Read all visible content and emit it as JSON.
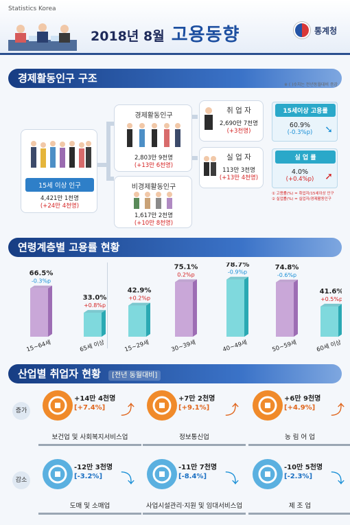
{
  "header": {
    "agency_small": "Statistics Korea",
    "date": "2018년 8월",
    "title": "고용동향",
    "logo_text": "통계청"
  },
  "section1": {
    "title": "경제활동인구 구조",
    "note": "※ ( )수치는 전년동월대비 증감",
    "pop15": {
      "label": "15세 이상 인구",
      "value": "4,421만 1천명",
      "change": "(+24만 4천명)"
    },
    "active": {
      "label": "경제활동인구",
      "value": "2,803만 9천명",
      "change": "(+13만 6천명)"
    },
    "inactive": {
      "label": "비경제활동인구",
      "value": "1,617만 2천명",
      "change": "(+10만 8천명)"
    },
    "employed": {
      "label": "취 업 자",
      "value": "2,690만 7천명",
      "change": "(+3천명)"
    },
    "unemployed": {
      "label": "실 업 자",
      "value": "113만 3천명",
      "change": "(+13만 4천명)"
    },
    "emp_rate": {
      "label": "15세이상 고용률",
      "value": "60.9%",
      "change": "(-0.3%p)"
    },
    "unemp_rate": {
      "label": "실 업 률",
      "value": "4.0%",
      "change": "(+0.4%p)"
    },
    "formula1": "① 고용률(%) = 취업자/15세이상 인구",
    "formula2": "② 실업률(%) = 실업자/경제활동인구"
  },
  "section2": {
    "title": "연령계층별 고용률 현황"
  },
  "chart_data": {
    "type": "bar",
    "categories": [
      "15~64세",
      "65세 이상",
      "15~29세",
      "30~39세",
      "40~49세",
      "50~59세",
      "60세 이상"
    ],
    "values": [
      66.5,
      33.0,
      42.9,
      75.1,
      78.7,
      74.8,
      41.6
    ],
    "value_labels": [
      "66.5%",
      "33.0%",
      "42.9%",
      "75.1%",
      "78.7%",
      "74.8%",
      "41.6%"
    ],
    "changes": [
      "-0.3%p",
      "+0.8%p",
      "+0.2%p",
      "0.2%p",
      "-0.9%p",
      "-0.6%p",
      "+0.5%p"
    ],
    "colors": {
      "purple": "#b78cc8",
      "teal": "#3fc3c9",
      "neg": "#1a8fd6",
      "pos": "#d42020"
    },
    "series_color": [
      "purple",
      "teal",
      "teal",
      "purple",
      "teal",
      "purple",
      "teal"
    ],
    "ylim": [
      0,
      100
    ]
  },
  "section3": {
    "title": "산업별 취업자 현황",
    "subtitle": "[전년 동월대비]",
    "increase_tag": "증가",
    "decrease_tag": "감소",
    "items": [
      {
        "name": "보건업 및 사회복지서비스업",
        "value": "+14만 4천명",
        "pct": "[+7.4%]",
        "dir": "up",
        "icon": "health-care-icon"
      },
      {
        "name": "정보통신업",
        "value": "+7만 2천명",
        "pct": "[+9.1%]",
        "dir": "up",
        "icon": "mouse-hand-icon"
      },
      {
        "name": "농 림 어 업",
        "value": "+6만 9천명",
        "pct": "[+4.9%]",
        "dir": "up",
        "icon": "farmer-icon"
      },
      {
        "name": "도매 및 소매업",
        "value": "-12만 3천명",
        "pct": "[-3.2%]",
        "dir": "down",
        "icon": "sale-shirt-icon"
      },
      {
        "name": "사업시설관리·지원 및 임대서비스업",
        "value": "-11만 7천명",
        "pct": "[-8.4%]",
        "dir": "down",
        "icon": "facility-service-icon"
      },
      {
        "name": "제 조 업",
        "value": "-10만 5천명",
        "pct": "[-2.3%]",
        "dir": "down",
        "icon": "gears-icon"
      }
    ]
  }
}
